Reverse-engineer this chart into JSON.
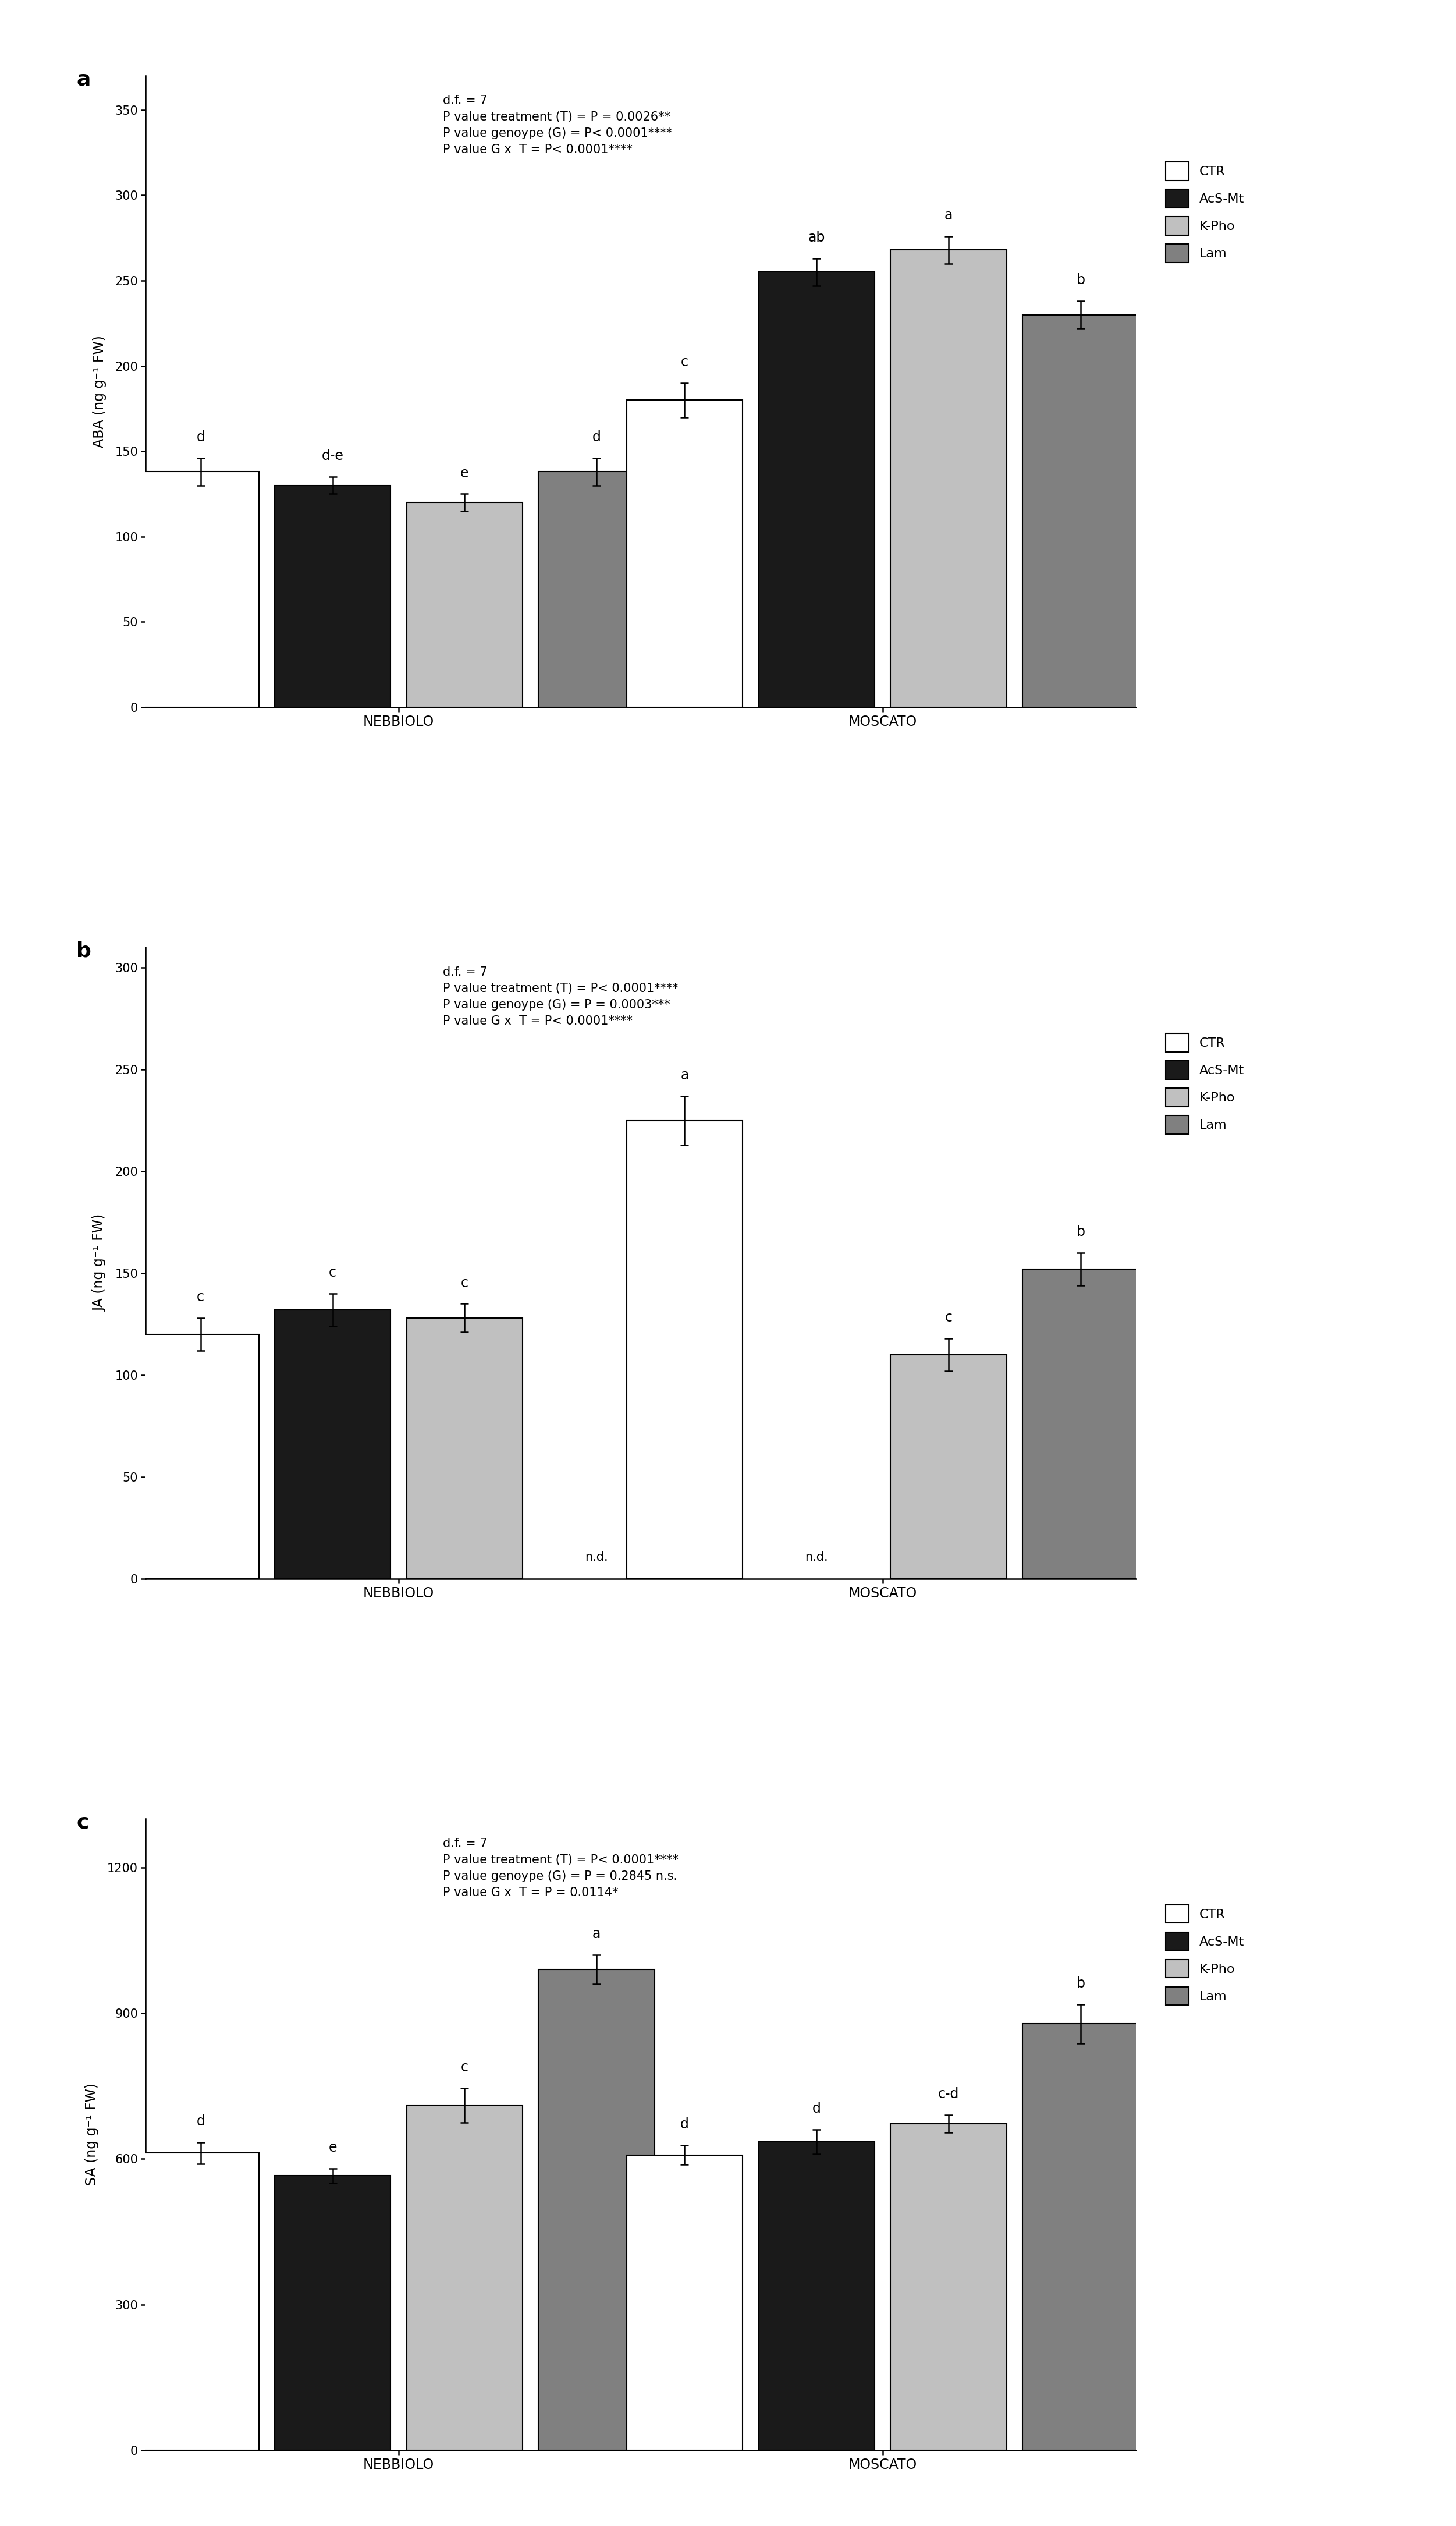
{
  "panel_a": {
    "title": "a",
    "stats_text": "d.f. = 7\nP value treatment (T) = P = 0.0026**\nP value genoype (G) = P< 0.0001****\nP value G x  T = P< 0.0001****",
    "ylabel": "ABA (ng g⁻¹ FW)",
    "ylim": [
      0,
      370
    ],
    "yticks": [
      0,
      50,
      100,
      150,
      200,
      250,
      300,
      350
    ],
    "groups": [
      "NEBBIOLO",
      "MOSCATO"
    ],
    "values": [
      [
        138,
        130,
        120,
        138
      ],
      [
        180,
        255,
        268,
        230
      ]
    ],
    "errors": [
      [
        8,
        5,
        5,
        8
      ],
      [
        10,
        8,
        8,
        8
      ]
    ],
    "letters": [
      [
        "d",
        "d-e",
        "e",
        "d"
      ],
      [
        "c",
        "ab",
        "a",
        "b"
      ]
    ],
    "nd_flags": [
      [
        false,
        false,
        false,
        false
      ],
      [
        false,
        false,
        false,
        false
      ]
    ]
  },
  "panel_b": {
    "title": "b",
    "stats_text": "d.f. = 7\nP value treatment (T) = P< 0.0001****\nP value genoype (G) = P = 0.0003***\nP value G x  T = P< 0.0001****",
    "ylabel": "JA (ng g⁻¹ FW)",
    "ylim": [
      0,
      310
    ],
    "yticks": [
      0,
      50,
      100,
      150,
      200,
      250,
      300
    ],
    "groups": [
      "NEBBIOLO",
      "MOSCATO"
    ],
    "values": [
      [
        120,
        132,
        128,
        0
      ],
      [
        225,
        0,
        110,
        152
      ]
    ],
    "errors": [
      [
        8,
        8,
        7,
        0
      ],
      [
        12,
        0,
        8,
        8
      ]
    ],
    "letters": [
      [
        "c",
        "c",
        "c",
        ""
      ],
      [
        "a",
        "",
        "c",
        "b"
      ]
    ],
    "nd_flags": [
      [
        false,
        false,
        false,
        true
      ],
      [
        false,
        true,
        false,
        false
      ]
    ]
  },
  "panel_c": {
    "title": "c",
    "stats_text": "d.f. = 7\nP value treatment (T) = P< 0.0001****\nP value genoype (G) = P = 0.2845 n.s.\nP value G x  T = P = 0.0114*",
    "ylabel": "SA (ng g⁻¹ FW)",
    "ylim": [
      0,
      1300
    ],
    "yticks": [
      0,
      300,
      600,
      900,
      1200
    ],
    "groups": [
      "NEBBIOLO",
      "MOSCATO"
    ],
    "values": [
      [
        612,
        565,
        710,
        990
      ],
      [
        608,
        635,
        672,
        878
      ]
    ],
    "errors": [
      [
        22,
        15,
        35,
        30
      ],
      [
        20,
        25,
        18,
        40
      ]
    ],
    "letters": [
      [
        "d",
        "e",
        "c",
        "a"
      ],
      [
        "d",
        "d",
        "c-d",
        "b"
      ]
    ],
    "nd_flags": [
      [
        false,
        false,
        false,
        false
      ],
      [
        false,
        false,
        false,
        false
      ]
    ]
  },
  "bar_colors": [
    "#ffffff",
    "#1a1a1a",
    "#c0c0c0",
    "#808080"
  ],
  "bar_edge_color": "#000000",
  "legend_labels": [
    "CTR",
    "AcS-Mt",
    "K-Pho",
    "Lam"
  ],
  "bar_width": 0.12,
  "background_color": "#ffffff",
  "font_size": 16,
  "letter_font_size": 17,
  "stats_font_size": 15,
  "axis_label_font_size": 17,
  "tick_font_size": 15,
  "legend_font_size": 16,
  "panel_label_fontsize": 26
}
